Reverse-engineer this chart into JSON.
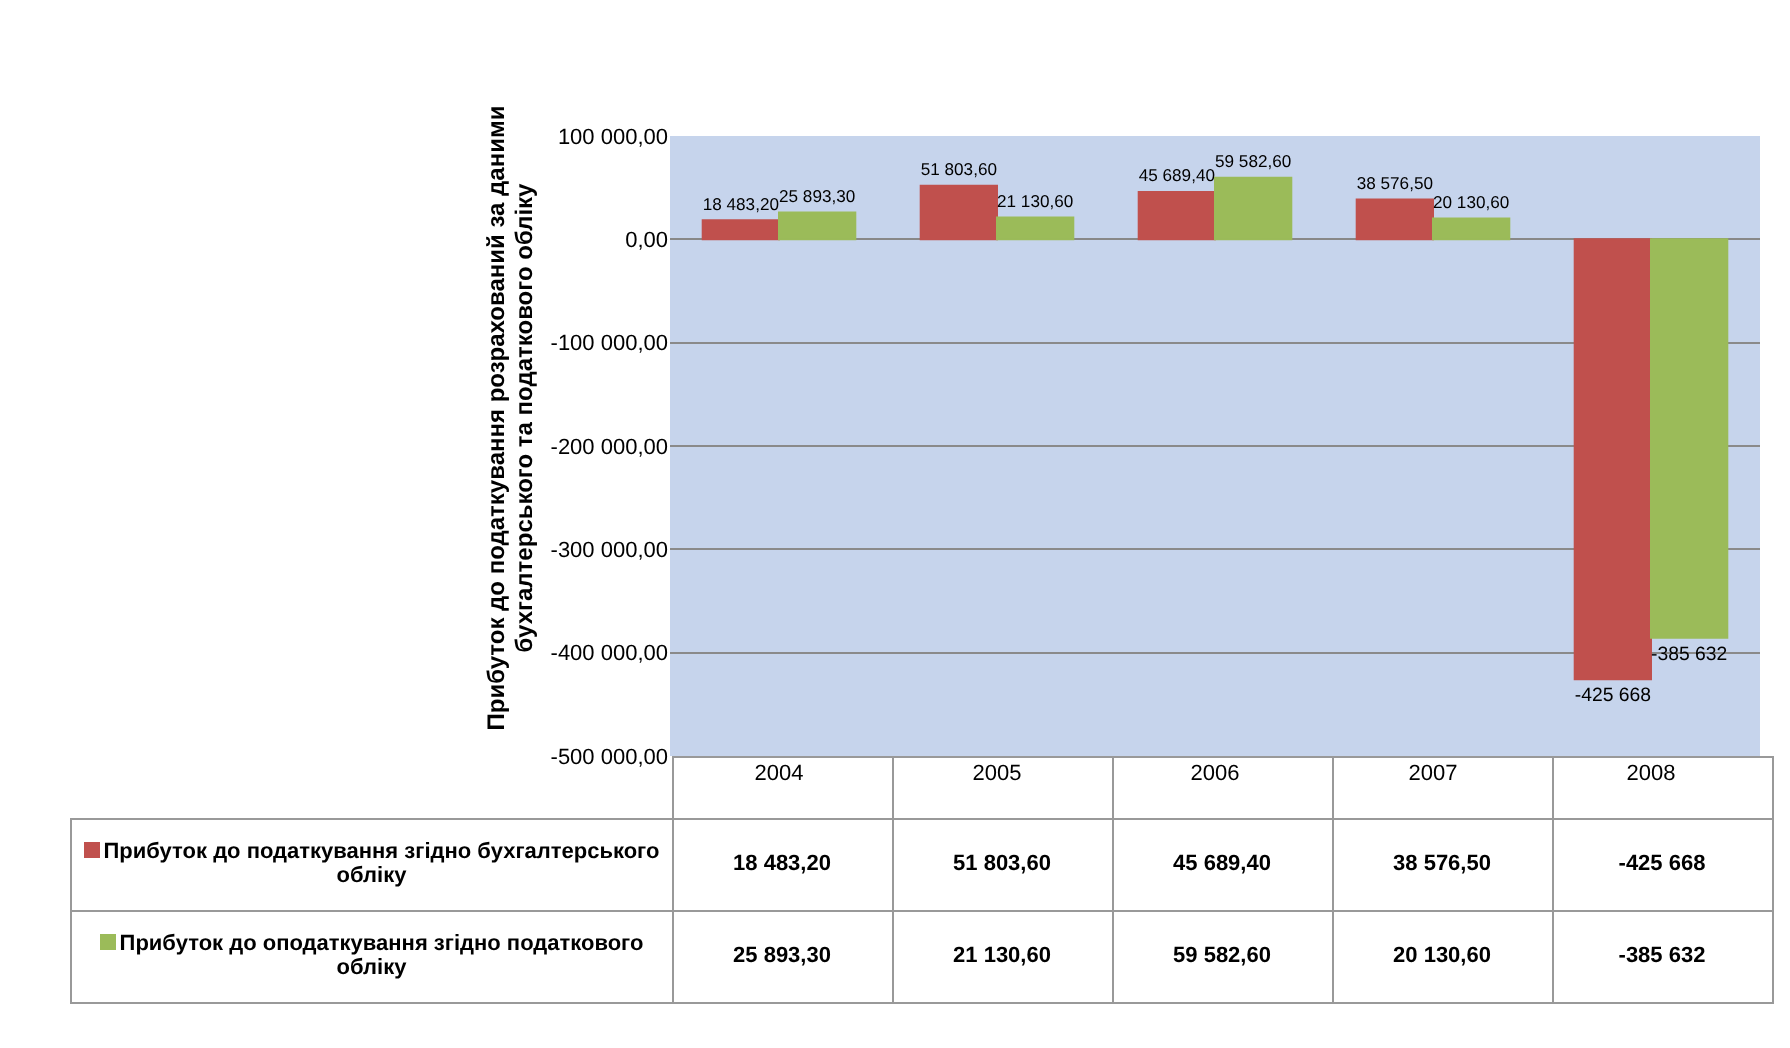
{
  "chart_data": {
    "type": "bar",
    "ylabel": "Прибуток до податкування розрахований за даними бухгалтерського та податкового обліку",
    "categories": [
      "2004",
      "2005",
      "2006",
      "2007",
      "2008"
    ],
    "series": [
      {
        "name": "Прибуток до податкування згідно бухгалтерського обліку",
        "color": "#c0504d",
        "values": [
          18483.2,
          51803.6,
          45689.4,
          38576.5,
          -425668
        ],
        "value_labels": [
          "18 483,20",
          "51 803,60",
          "45 689,40",
          "38 576,50",
          "-425 668"
        ]
      },
      {
        "name": "Прибуток до оподаткування згідно податкового обліку",
        "color": "#9bbb59",
        "values": [
          25893.3,
          21130.6,
          59582.6,
          20130.6,
          -385632
        ],
        "value_labels": [
          "25 893,30",
          "21 130,60",
          "59 582,60",
          "20 130,60",
          "-385 632"
        ]
      }
    ],
    "ylim": [
      -500000,
      100000
    ],
    "yticks": [
      {
        "value": 100000,
        "label": "100 000,00"
      },
      {
        "value": 0,
        "label": "0,00"
      },
      {
        "value": -100000,
        "label": "-100 000,00"
      },
      {
        "value": -200000,
        "label": "-200 000,00"
      },
      {
        "value": -300000,
        "label": "-300 000,00"
      },
      {
        "value": -400000,
        "label": "-400 000,00"
      },
      {
        "value": -500000,
        "label": "-500 000,00"
      }
    ],
    "grid": "y",
    "legend": "bottom"
  }
}
